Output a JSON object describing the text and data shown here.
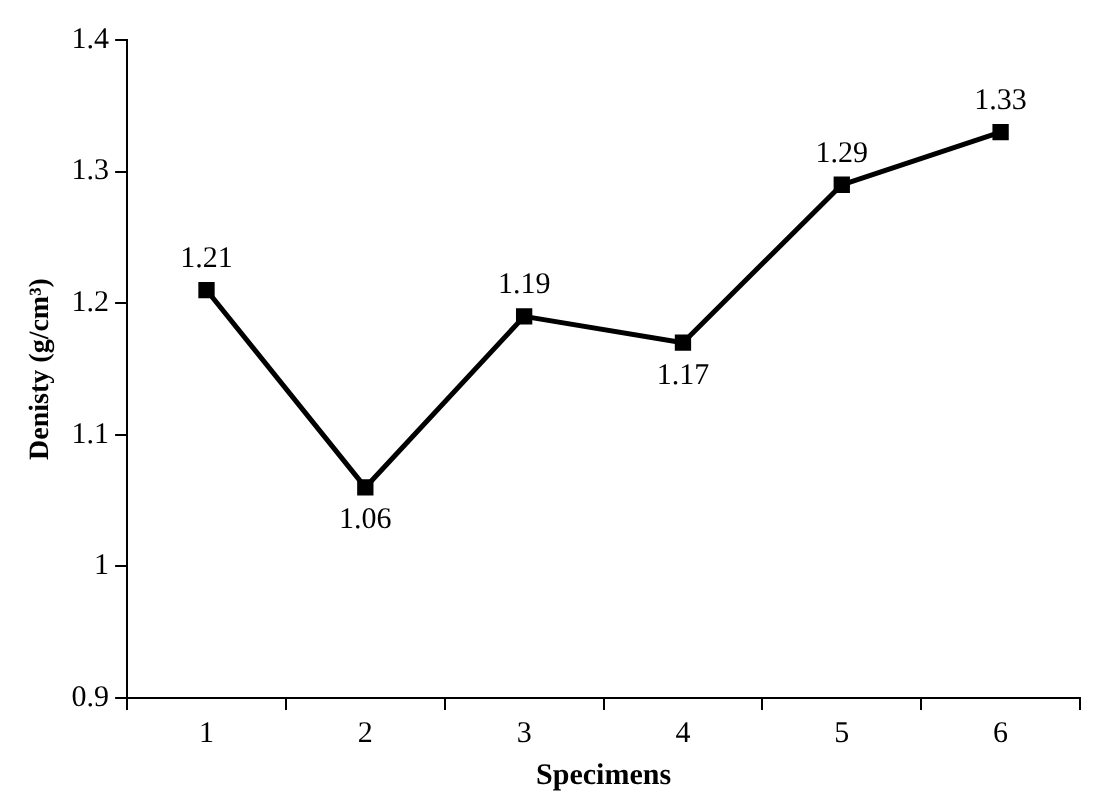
{
  "chart_data": {
    "type": "line",
    "xlabel": "Specimens",
    "ylabel": "Denisty (g/cm³)",
    "categories": [
      "1",
      "2",
      "3",
      "4",
      "5",
      "6"
    ],
    "series": [
      {
        "color": "#000000",
        "values": [
          1.21,
          1.06,
          1.19,
          1.17,
          1.29,
          1.33
        ]
      }
    ],
    "ylim": [
      0.9,
      1.4
    ],
    "yticks": [
      0.9,
      1,
      1.1,
      1.2,
      1.3,
      1.4
    ],
    "grid": false,
    "legend": false,
    "marker": "square",
    "line_style": "solid",
    "data_labels": true
  }
}
